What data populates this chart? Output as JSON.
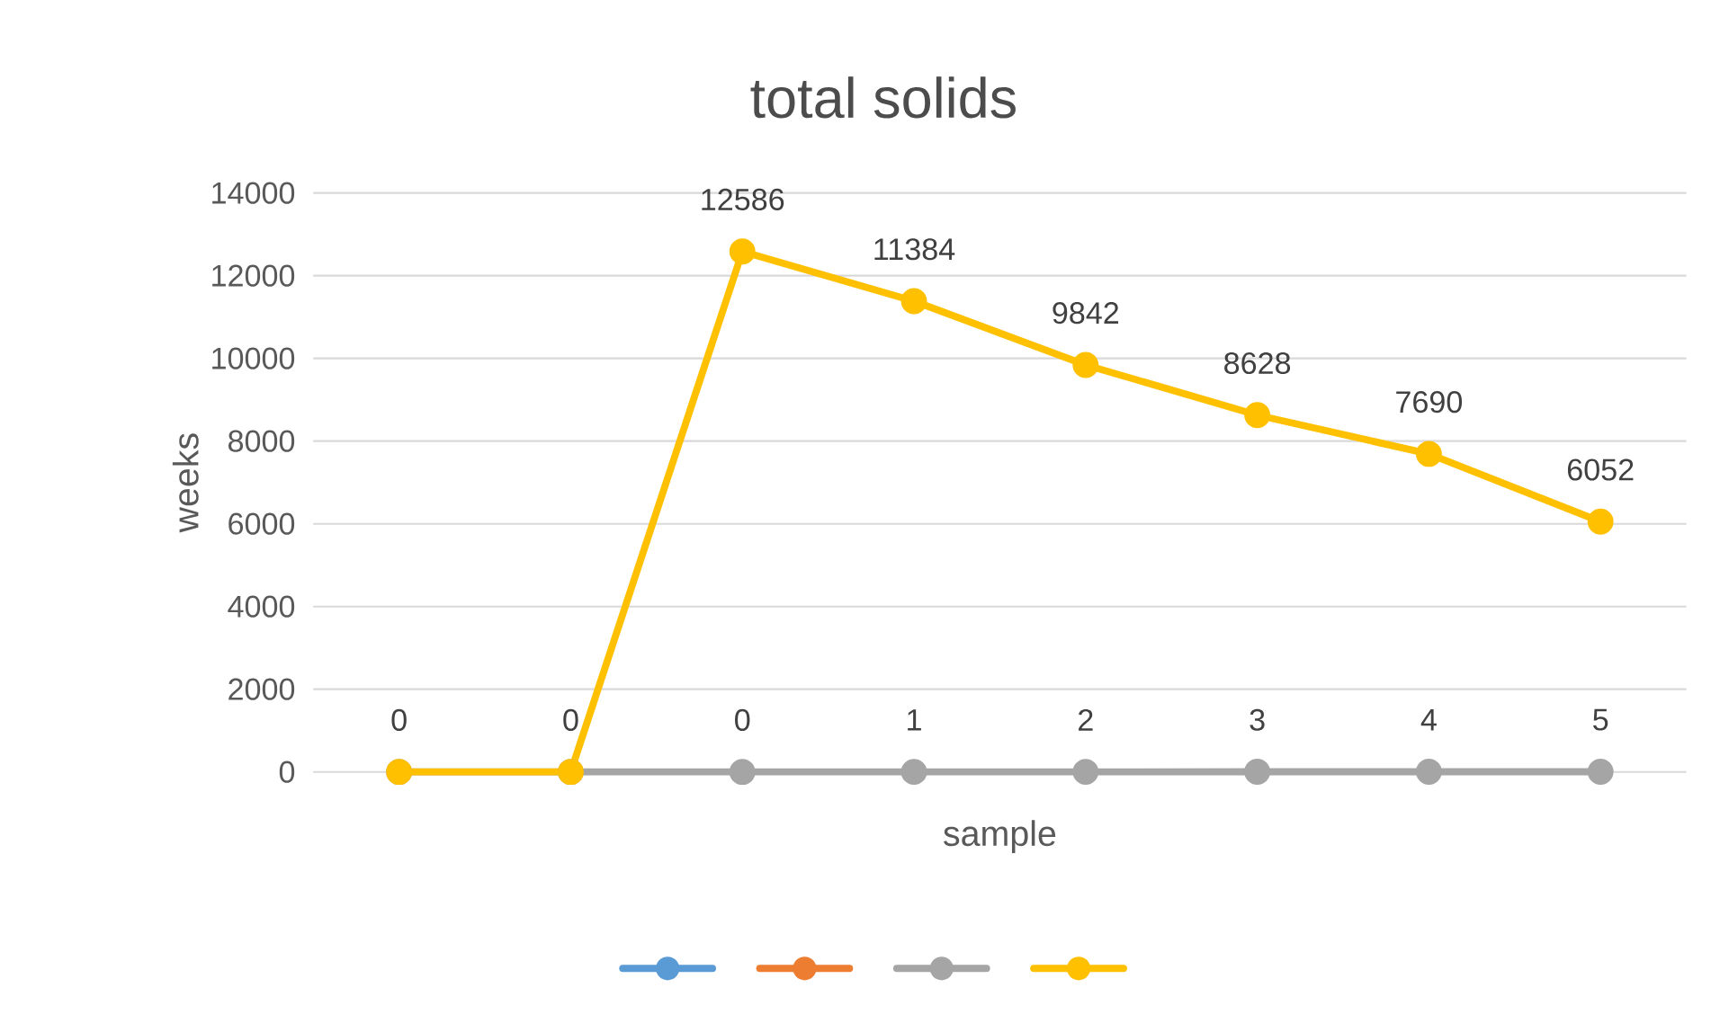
{
  "chart_data": {
    "type": "line",
    "title": "total solids",
    "xlabel": "sample",
    "ylabel": "weeks",
    "categories": [
      null,
      null,
      null,
      null,
      null,
      null,
      null,
      null
    ],
    "series": [
      {
        "color": "#5b9bd5",
        "values": [
          null,
          null,
          null,
          null,
          null,
          null,
          null,
          null
        ]
      },
      {
        "color": "#ed7d31",
        "values": [
          null,
          null,
          null,
          null,
          null,
          null,
          null,
          null
        ]
      },
      {
        "color": "#a5a5a5",
        "values": [
          0,
          0,
          0,
          1,
          2,
          3,
          4,
          5
        ],
        "value_labels": [
          null,
          null,
          "0",
          "1",
          "2",
          "3",
          "4",
          "5"
        ]
      },
      {
        "color": "#ffc000",
        "values": [
          0,
          0,
          12586,
          11384,
          9842,
          8628,
          7690,
          6052
        ],
        "value_labels": [
          "0",
          "0",
          "12586",
          "11384",
          "9842",
          "8628",
          "7690",
          "6052"
        ]
      }
    ],
    "ylim": [
      0,
      14000
    ],
    "yticks": [
      0,
      2000,
      4000,
      6000,
      8000,
      10000,
      12000,
      14000
    ],
    "grid": "y",
    "marker": "circle",
    "line_style": "solid",
    "tick_labels": "y"
  }
}
